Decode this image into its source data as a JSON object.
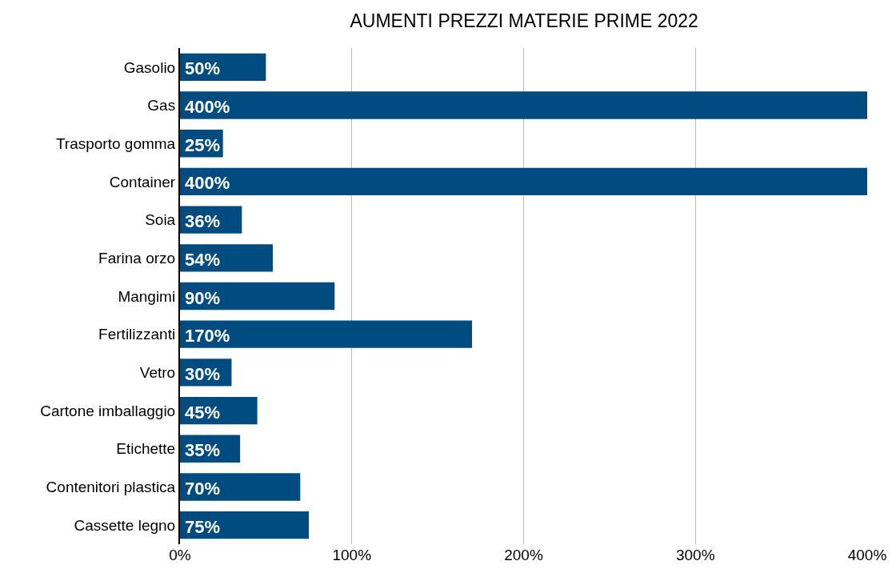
{
  "chart_data": {
    "type": "bar",
    "orientation": "horizontal",
    "title": "AUMENTI PREZZI MATERIE PRIME 2022",
    "categories": [
      "Gasolio",
      "Gas",
      "Trasporto gomma",
      "Container",
      "Soia",
      "Farina orzo",
      "Mangimi",
      "Fertilizzanti",
      "Vetro",
      "Cartone imballaggio",
      "Etichette",
      "Contenitori plastica",
      "Cassette legno"
    ],
    "values": [
      50,
      400,
      25,
      400,
      36,
      54,
      90,
      170,
      30,
      45,
      35,
      70,
      75
    ],
    "value_labels": [
      "50%",
      "400%",
      "25%",
      "400%",
      "36%",
      "54%",
      "90%",
      "170%",
      "30%",
      "45%",
      "35%",
      "70%",
      "75%"
    ],
    "color": "#004c80",
    "xlim": [
      0,
      400
    ],
    "xticks": [
      {
        "value": 0,
        "label": "0%"
      },
      {
        "value": 100,
        "label": "100%"
      },
      {
        "value": 200,
        "label": "200%"
      },
      {
        "value": 300,
        "label": "300%"
      },
      {
        "value": 400,
        "label": "400%"
      }
    ],
    "grid": "x"
  }
}
